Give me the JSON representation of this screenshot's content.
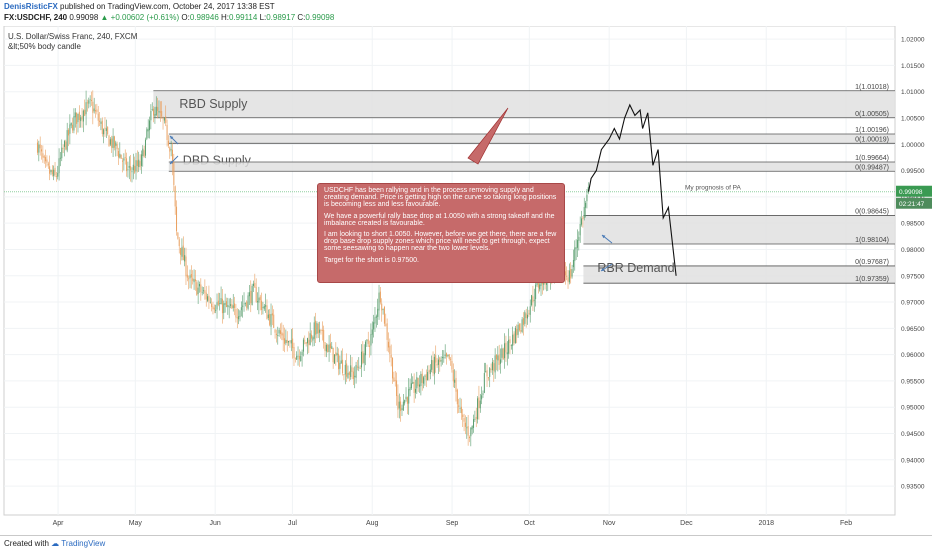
{
  "header": {
    "author": "DenisRisticFX",
    "published": "published on TradingView.com, October 24, 2017 13:38 EST",
    "symbol": "FX:USDCHF, 240",
    "last": "0.99098",
    "change": "▲ +0.00602 (+0.61%)",
    "o_label": "O:",
    "o": "0.98946",
    "h_label": "H:",
    "h": "0.99114",
    "l_label": "L:",
    "l": "0.98917",
    "c_label": "C:",
    "c": "0.99098"
  },
  "chart_title": "U.S. Dollar/Swiss Franc, 240, FXCM",
  "chart_subtitle": "&lt;50% body candle",
  "footer": {
    "created": "Created with",
    "brand": "TradingView"
  },
  "annotation": {
    "paragraphs": [
      "USDCHF has been rallying and in the process removing supply and creating demand. Price is getting high on the curve so taking long positions is becoming less and less favourable.",
      "We have a powerful rally base drop at 1.0050 with a strong takeoff and the imbalance created is favourable.",
      "I am looking to short 1.0050. However, before we get there, there are a few drop base drop supply zones which price will need to get through, expect some seesawing to happen near the two lower levels.",
      "Target for the short is 0.97500."
    ],
    "prognosis": "My prognosis of PA"
  },
  "colors": {
    "zone": "#e0e0e0",
    "zone_border": "#555555",
    "bull": "#5a9e6f",
    "bear": "#e9a060",
    "note_bg": "#c66a6a",
    "note_border": "#a84848",
    "price_tag": "#3a9a52",
    "time_tag": "#4e8c5c",
    "arrow": "#4a7bb7",
    "callout_line": "#a03030"
  },
  "chart_data": {
    "type": "candlestick",
    "title": "U.S. Dollar/Swiss Franc, 240, FXCM",
    "x_ticks": [
      "Apr",
      "May",
      "Jun",
      "Jul",
      "Aug",
      "Sep",
      "Oct",
      "Nov",
      "Dec",
      "2018",
      "Feb"
    ],
    "y_ticks": [
      "1.02000",
      "1.01500",
      "1.01000",
      "1.00500",
      "1.00000",
      "0.99500",
      "0.99000",
      "0.98500",
      "0.98000",
      "0.97500",
      "0.97000",
      "0.96500",
      "0.96000",
      "0.95500",
      "0.95000",
      "0.94500",
      "0.94000",
      "0.93500"
    ],
    "ylim": [
      0.9295,
      1.0225
    ],
    "current_price": "0.99098",
    "current_time": "02:21:47",
    "price_series": [
      [
        "2017-03-24",
        1.0
      ],
      [
        "2017-03-27",
        0.9955
      ],
      [
        "2017-03-31",
        0.9935
      ],
      [
        "2017-04-03",
        0.999
      ],
      [
        "2017-04-07",
        1.0045
      ],
      [
        "2017-04-11",
        1.0065
      ],
      [
        "2017-04-14",
        1.0075
      ],
      [
        "2017-04-19",
        1.002
      ],
      [
        "2017-04-24",
        0.999
      ],
      [
        "2017-04-28",
        0.995
      ],
      [
        "2017-05-03",
        0.996
      ],
      [
        "2017-05-08",
        1.007
      ],
      [
        "2017-05-12",
        1.004
      ],
      [
        "2017-05-15",
        0.999
      ],
      [
        "2017-05-17",
        0.983
      ],
      [
        "2017-05-22",
        0.974
      ],
      [
        "2017-05-31",
        0.97
      ],
      [
        "2017-06-09",
        0.968
      ],
      [
        "2017-06-16",
        0.972
      ],
      [
        "2017-06-26",
        0.964
      ],
      [
        "2017-07-03",
        0.96
      ],
      [
        "2017-07-10",
        0.965
      ],
      [
        "2017-07-18",
        0.959
      ],
      [
        "2017-07-25",
        0.956
      ],
      [
        "2017-08-01",
        0.964
      ],
      [
        "2017-08-04",
        0.972
      ],
      [
        "2017-08-08",
        0.96
      ],
      [
        "2017-08-11",
        0.95
      ],
      [
        "2017-08-18",
        0.954
      ],
      [
        "2017-08-25",
        0.958
      ],
      [
        "2017-08-31",
        0.959
      ],
      [
        "2017-09-05",
        0.947
      ],
      [
        "2017-09-08",
        0.945
      ],
      [
        "2017-09-14",
        0.956
      ],
      [
        "2017-09-22",
        0.961
      ],
      [
        "2017-09-29",
        0.967
      ],
      [
        "2017-10-05",
        0.974
      ],
      [
        "2017-10-12",
        0.976
      ],
      [
        "2017-10-17",
        0.975
      ],
      [
        "2017-10-20",
        0.983
      ],
      [
        "2017-10-24",
        0.991
      ]
    ],
    "prognosis_path": [
      [
        "2017-10-24",
        0.991
      ],
      [
        "2017-10-25",
        0.9935
      ],
      [
        "2017-10-27",
        0.995
      ],
      [
        "2017-10-29",
        0.999
      ],
      [
        "2017-11-01",
        1.001
      ],
      [
        "2017-11-03",
        1.003
      ],
      [
        "2017-11-05",
        1.001
      ],
      [
        "2017-11-07",
        1.005
      ],
      [
        "2017-11-09",
        1.0075
      ],
      [
        "2017-11-11",
        1.0055
      ],
      [
        "2017-11-13",
        1.0065
      ],
      [
        "2017-11-14",
        1.003
      ],
      [
        "2017-11-16",
        1.006
      ],
      [
        "2017-11-18",
        0.996
      ],
      [
        "2017-11-20",
        0.999
      ],
      [
        "2017-11-22",
        0.986
      ],
      [
        "2017-11-24",
        0.988
      ],
      [
        "2017-11-27",
        0.975
      ]
    ],
    "zones": [
      {
        "label": "RBD Supply",
        "start": "2017-05-08",
        "top": 1.01018,
        "bottom": 1.00505,
        "top_label": "1(1.01018)",
        "bottom_label": "0(1.00505)"
      },
      {
        "label": "DBD Supply",
        "start": "2017-05-14",
        "top": 1.00196,
        "bottom": 1.00019,
        "top_label": "1(1.00196)",
        "bottom_label": "0(1.00019)"
      },
      {
        "label": "",
        "start": "2017-05-14",
        "top": 0.99664,
        "bottom": 0.99487,
        "top_label": "1(0.99664)",
        "bottom_label": "0(0.99487)"
      },
      {
        "label": "",
        "start": "2017-10-22",
        "top": 0.98645,
        "bottom": 0.98104,
        "top_label": "0(0.98645)",
        "bottom_label": "1(0.98104)"
      },
      {
        "label": "RBR Demand",
        "start": "2017-10-22",
        "top": 0.97687,
        "bottom": 0.97359,
        "top_label": "0(0.97687)",
        "bottom_label": "1(0.97359)"
      }
    ]
  }
}
